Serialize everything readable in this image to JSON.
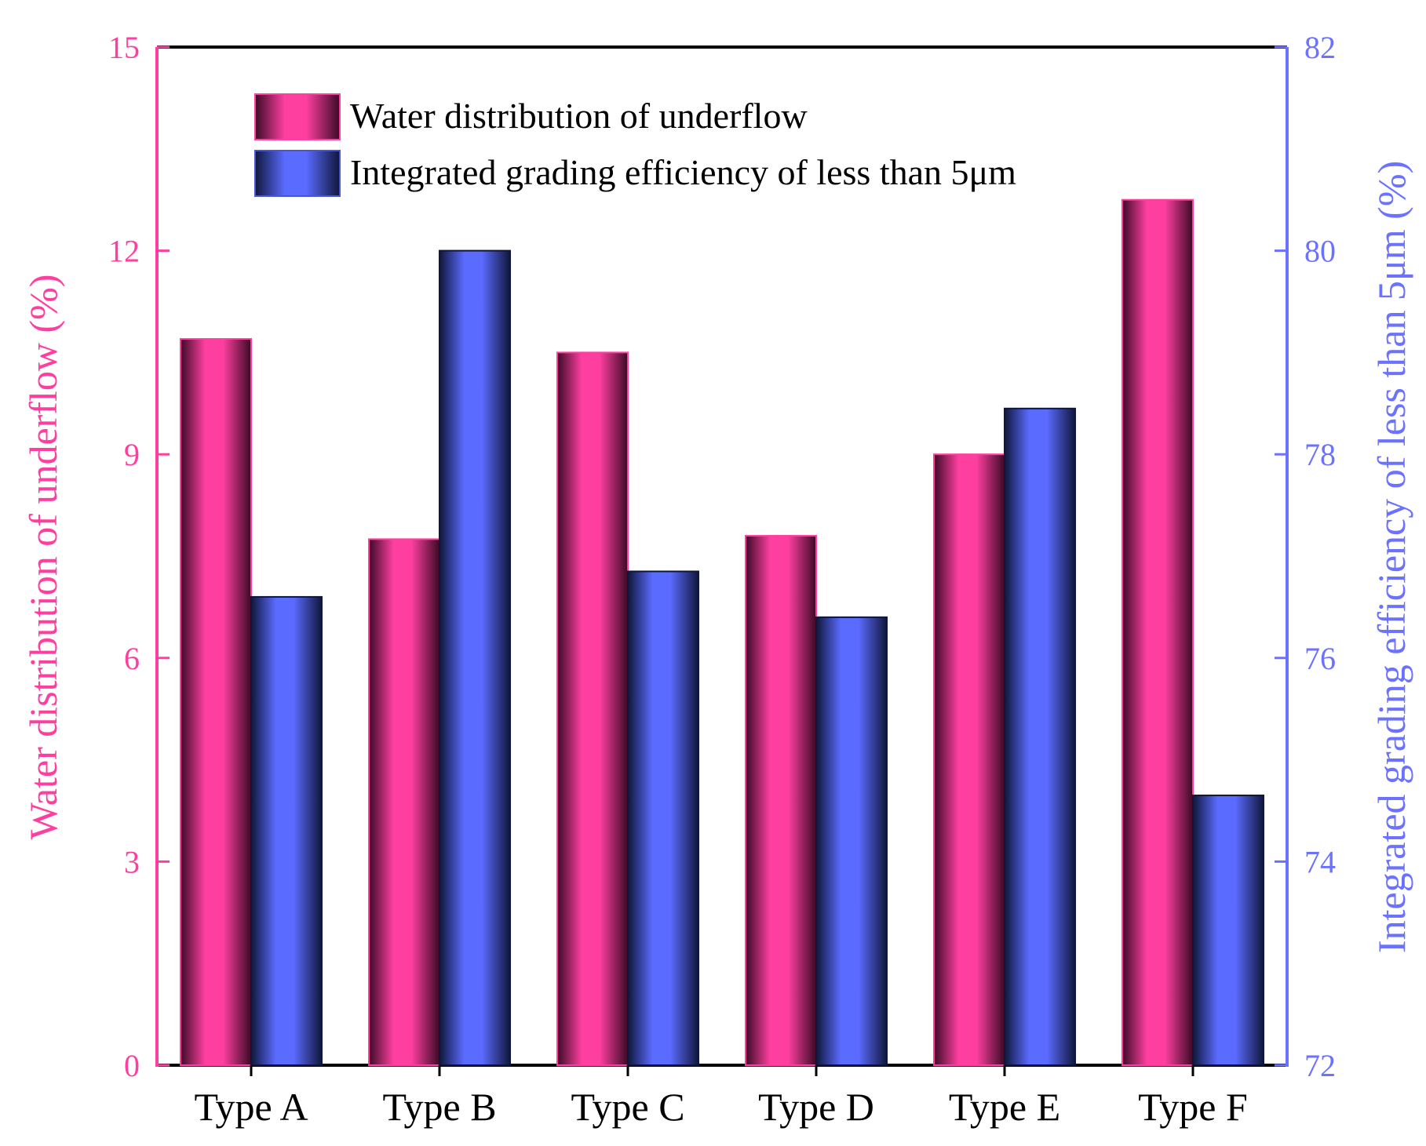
{
  "chart_data": {
    "type": "bar",
    "categories": [
      "Type A",
      "Type B",
      "Type C",
      "Type D",
      "Type E",
      "Type F"
    ],
    "series": [
      {
        "name": "Water distribution of underflow",
        "axis": "left",
        "color": "#ff3fa0",
        "values": [
          10.7,
          7.75,
          10.5,
          7.8,
          9.0,
          12.75
        ]
      },
      {
        "name": "Integrated grading efficiency of less than 5μm",
        "axis": "right",
        "color": "#5a6bff",
        "values": [
          76.6,
          80.0,
          76.85,
          76.4,
          78.45,
          74.65
        ]
      }
    ],
    "ylabel_left": "Water distribution of underflow (%)",
    "ylabel_right": "Integrated grading efficiency of less than 5μm (%)",
    "ylim_left": [
      0,
      15
    ],
    "yticks_left": [
      "0",
      "3",
      "6",
      "9",
      "12",
      "15"
    ],
    "ylim_right": [
      72,
      82
    ],
    "yticks_right": [
      "72",
      "74",
      "76",
      "78",
      "80",
      "82"
    ],
    "legend_position": "top-left",
    "grid": false
  }
}
